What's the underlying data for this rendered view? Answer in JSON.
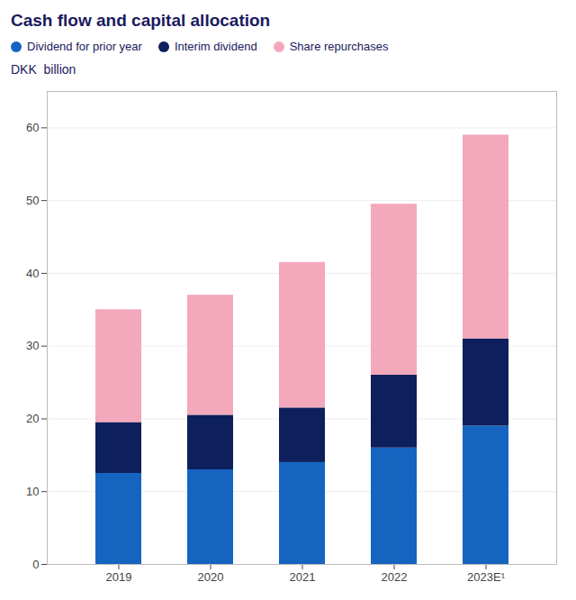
{
  "chart_data": {
    "type": "bar",
    "title": "Cash flow and capital allocation",
    "ylabel": "DKK  billion",
    "categories": [
      "2019",
      "2020",
      "2021",
      "2022",
      "2023E¹"
    ],
    "series": [
      {
        "name": "Dividend for prior year",
        "color": "#1565C0",
        "values": [
          12.5,
          13.0,
          14.0,
          16.0,
          19.0
        ]
      },
      {
        "name": "Interim dividend",
        "color": "#0d1f5c",
        "values": [
          7.0,
          7.5,
          7.5,
          10.0,
          12.0
        ]
      },
      {
        "name": "Share repurchases",
        "color": "#f4a8bc",
        "values": [
          15.5,
          16.5,
          20.0,
          23.5,
          28.0
        ]
      }
    ],
    "stacked": true,
    "ylim": [
      0,
      65
    ],
    "yticks": [
      0,
      10,
      20,
      30,
      40,
      50,
      60
    ],
    "grid": true,
    "legend": "top"
  }
}
